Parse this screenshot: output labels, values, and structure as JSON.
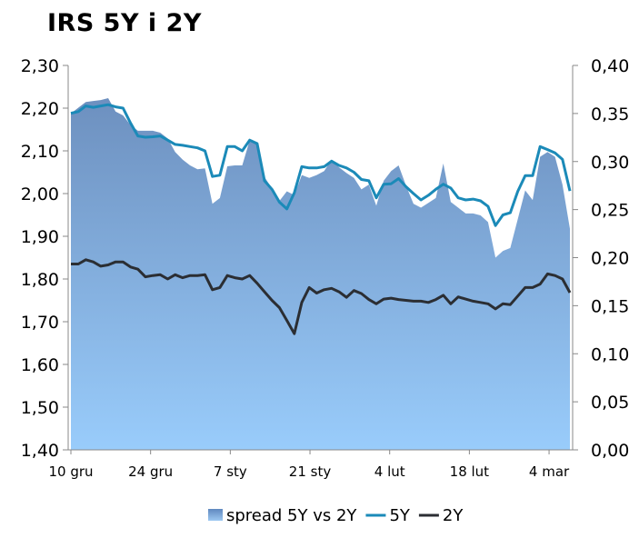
{
  "chart_data": {
    "type": "line",
    "title": "IRS 5Y i 2Y",
    "x_tick_labels": [
      "10 gru",
      "24 gru",
      "7 sty",
      "21 sty",
      "4 lut",
      "18 lut",
      "4 mar"
    ],
    "left_axis": {
      "ylim": [
        1.4,
        2.3
      ],
      "ticks": [
        "1,40",
        "1,50",
        "1,60",
        "1,70",
        "1,80",
        "1,90",
        "2,00",
        "2,10",
        "2,20",
        "2,30"
      ]
    },
    "right_axis": {
      "ylim": [
        0.0,
        0.4
      ],
      "ticks": [
        "0,00",
        "0,05",
        "0,10",
        "0,15",
        "0,20",
        "0,25",
        "0,30",
        "0,35",
        "0,40"
      ]
    },
    "n_points": 68,
    "series": [
      {
        "name": "spread 5Y vs 2Y",
        "kind": "area",
        "axis": "right",
        "color": "#7ba4d4",
        "values": [
          0.35,
          0.356,
          0.362,
          0.363,
          0.364,
          0.366,
          0.352,
          0.348,
          0.338,
          0.332,
          0.332,
          0.332,
          0.33,
          0.324,
          0.31,
          0.302,
          0.296,
          0.292,
          0.293,
          0.256,
          0.262,
          0.295,
          0.296,
          0.296,
          0.322,
          0.318,
          0.284,
          0.272,
          0.259,
          0.269,
          0.265,
          0.286,
          0.283,
          0.286,
          0.29,
          0.302,
          0.294,
          0.288,
          0.283,
          0.271,
          0.276,
          0.254,
          0.28,
          0.29,
          0.296,
          0.275,
          0.256,
          0.252,
          0.257,
          0.262,
          0.298,
          0.258,
          0.252,
          0.246,
          0.246,
          0.244,
          0.237,
          0.2,
          0.207,
          0.21,
          0.24,
          0.27,
          0.26,
          0.305,
          0.31,
          0.305,
          0.276,
          0.23
        ]
      },
      {
        "name": "5Y",
        "kind": "line",
        "axis": "left",
        "color": "#1b8ab8",
        "values": [
          2.188,
          2.192,
          2.205,
          2.202,
          2.205,
          2.208,
          2.203,
          2.2,
          2.165,
          2.135,
          2.132,
          2.133,
          2.135,
          2.125,
          2.115,
          2.113,
          2.11,
          2.107,
          2.1,
          2.04,
          2.043,
          2.11,
          2.11,
          2.1,
          2.125,
          2.117,
          2.03,
          2.01,
          1.98,
          1.964,
          2.002,
          2.063,
          2.06,
          2.06,
          2.063,
          2.076,
          2.066,
          2.06,
          2.05,
          2.033,
          2.03,
          1.99,
          2.022,
          2.023,
          2.035,
          2.016,
          2.0,
          1.985,
          1.996,
          2.01,
          2.022,
          2.013,
          1.99,
          1.985,
          1.987,
          1.983,
          1.97,
          1.925,
          1.95,
          1.955,
          2.005,
          2.042,
          2.042,
          2.11,
          2.103,
          2.095,
          2.08,
          2.006
        ]
      },
      {
        "name": "2Y",
        "kind": "line",
        "axis": "left",
        "color": "#2b2e33",
        "values": [
          1.835,
          1.835,
          1.845,
          1.84,
          1.83,
          1.833,
          1.84,
          1.84,
          1.828,
          1.823,
          1.805,
          1.808,
          1.81,
          1.8,
          1.81,
          1.803,
          1.808,
          1.808,
          1.81,
          1.775,
          1.78,
          1.808,
          1.803,
          1.8,
          1.808,
          1.79,
          1.77,
          1.75,
          1.733,
          1.703,
          1.672,
          1.745,
          1.78,
          1.767,
          1.775,
          1.778,
          1.77,
          1.757,
          1.773,
          1.766,
          1.752,
          1.742,
          1.753,
          1.755,
          1.752,
          1.75,
          1.748,
          1.748,
          1.745,
          1.752,
          1.762,
          1.742,
          1.758,
          1.753,
          1.748,
          1.745,
          1.742,
          1.73,
          1.742,
          1.74,
          1.76,
          1.78,
          1.78,
          1.788,
          1.812,
          1.808,
          1.8,
          1.768
        ]
      }
    ],
    "legend_position": "bottom"
  }
}
